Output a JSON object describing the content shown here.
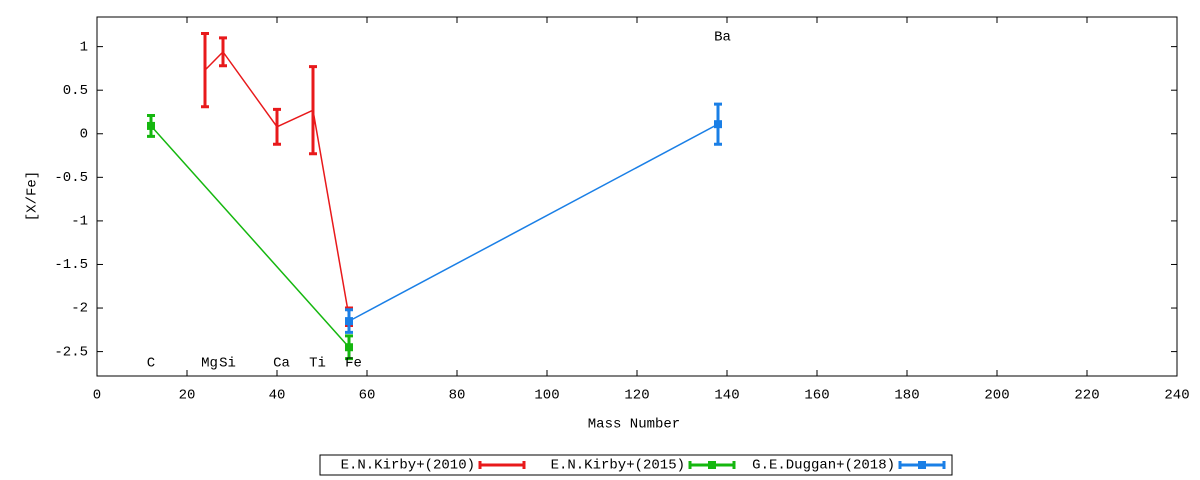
{
  "chart_data": {
    "type": "errorbar-line",
    "xlabel": "Mass Number",
    "ylabel": "[X/Fe]",
    "xlim": [
      0,
      240
    ],
    "ylim": [
      -2.78,
      1.34
    ],
    "xticks": [
      0,
      20,
      40,
      60,
      80,
      100,
      120,
      140,
      160,
      180,
      200,
      220,
      240
    ],
    "yticks": [
      1,
      0.5,
      0,
      -0.5,
      -1,
      -1.5,
      -2,
      -2.5
    ],
    "legend": "bottom",
    "series": [
      {
        "name": "E.N.Kirby+(2010)",
        "color": "#e8191b",
        "marker": "none",
        "x": [
          24,
          28,
          40,
          48,
          56
        ],
        "values": [
          0.73,
          0.94,
          0.08,
          0.27,
          -2.1
        ],
        "errors": [
          0.42,
          0.16,
          0.2,
          0.5,
          0.1
        ]
      },
      {
        "name": "E.N.Kirby+(2015)",
        "color": "#15b70f",
        "marker": "square",
        "x": [
          12,
          56
        ],
        "values": [
          0.09,
          -2.45
        ],
        "errors": [
          0.12,
          0.13
        ]
      },
      {
        "name": "G.E.Duggan+(2018)",
        "color": "#1a7fe6",
        "marker": "square",
        "x": [
          56,
          138
        ],
        "values": [
          -2.15,
          0.11
        ],
        "errors": [
          0.13,
          0.23
        ]
      }
    ],
    "annotations": [
      {
        "text": "C",
        "x": 12,
        "y": -2.63
      },
      {
        "text": "Mg",
        "x": 25,
        "y": -2.63
      },
      {
        "text": "Si",
        "x": 29,
        "y": -2.63
      },
      {
        "text": "Ca",
        "x": 41,
        "y": -2.63
      },
      {
        "text": "Ti",
        "x": 49,
        "y": -2.63
      },
      {
        "text": "Fe",
        "x": 57,
        "y": -2.63
      },
      {
        "text": "Ba",
        "x": 139,
        "y": 1.11
      }
    ]
  }
}
